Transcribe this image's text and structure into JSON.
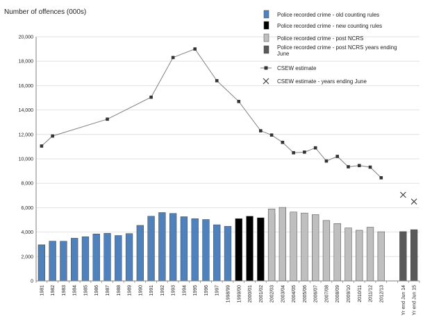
{
  "chart_data": {
    "type": "bar",
    "ylabel": "Number of offences (000s)",
    "ylim": [
      0,
      20000
    ],
    "yticks": [
      0,
      2000,
      4000,
      6000,
      8000,
      10000,
      12000,
      14000,
      16000,
      18000,
      20000
    ],
    "ytick_labels": [
      "0",
      "2,000",
      "4,000",
      "6,000",
      "8,000",
      "10,000",
      "12,000",
      "14,000",
      "16,000",
      "18,000",
      "20,000"
    ],
    "categories": [
      "1981",
      "1982",
      "1983",
      "1984",
      "1985",
      "1986",
      "1987",
      "1988",
      "1989",
      "1990",
      "1991",
      "1992",
      "1993",
      "1994",
      "1995",
      "1996",
      "1997",
      "1998/99",
      "1999/00",
      "2000/01",
      "2001/02",
      "2002/03",
      "2003/04",
      "2004/05",
      "2005/06",
      "2006/07",
      "2007/08",
      "2008/09",
      "2009/10",
      "2010/11",
      "2011/12",
      "2012/13",
      "",
      "Yr end Jun 14",
      "Yr end Jun 15"
    ],
    "legend_position": "top-right",
    "series": [
      {
        "name": "Police recorded crime - old counting rules",
        "kind": "bar",
        "color": "#4f81bd",
        "values": [
          2960,
          3260,
          3250,
          3500,
          3620,
          3850,
          3900,
          3720,
          3880,
          4550,
          5300,
          5600,
          5530,
          5260,
          5100,
          5030,
          4600,
          4480,
          null,
          null,
          null,
          null,
          null,
          null,
          null,
          null,
          null,
          null,
          null,
          null,
          null,
          null,
          null,
          null,
          null
        ]
      },
      {
        "name": "Police recorded crime - new counting rules",
        "kind": "bar",
        "color": "#000000",
        "values": [
          null,
          null,
          null,
          null,
          null,
          null,
          null,
          null,
          null,
          null,
          null,
          null,
          null,
          null,
          null,
          null,
          null,
          null,
          5100,
          5300,
          5170,
          5530,
          null,
          null,
          null,
          null,
          null,
          null,
          null,
          null,
          null,
          null,
          null,
          null,
          null
        ]
      },
      {
        "name": "Police recorded crime - post NCRS",
        "kind": "bar",
        "color": "#bfbfbf",
        "values": [
          null,
          null,
          null,
          null,
          null,
          null,
          null,
          null,
          null,
          null,
          null,
          null,
          null,
          null,
          null,
          null,
          null,
          null,
          null,
          null,
          null,
          5900,
          6020,
          5640,
          5560,
          5430,
          4950,
          4700,
          4340,
          4150,
          4400,
          4030,
          null,
          null,
          null
        ]
      },
      {
        "name": "Police recorded crime - post NCRS years ending June",
        "kind": "bar",
        "color": "#595959",
        "values": [
          null,
          null,
          null,
          null,
          null,
          null,
          null,
          null,
          null,
          null,
          null,
          null,
          null,
          null,
          null,
          null,
          null,
          null,
          null,
          null,
          null,
          null,
          null,
          null,
          null,
          null,
          null,
          null,
          null,
          null,
          null,
          null,
          null,
          4040,
          4200
        ]
      },
      {
        "name": "CSEW  estimate",
        "kind": "line",
        "color": "#333333",
        "values": [
          11050,
          11870,
          null,
          null,
          null,
          null,
          13250,
          null,
          null,
          null,
          15050,
          null,
          18300,
          null,
          19000,
          null,
          16400,
          null,
          14700,
          null,
          12300,
          11950,
          11350,
          10500,
          10550,
          10900,
          9820,
          10200,
          9350,
          9450,
          9320,
          8450,
          null,
          null,
          null
        ]
      },
      {
        "name": "CSEW  estimate - years ending June",
        "kind": "cross",
        "color": "#333333",
        "values": [
          null,
          null,
          null,
          null,
          null,
          null,
          null,
          null,
          null,
          null,
          null,
          null,
          null,
          null,
          null,
          null,
          null,
          null,
          null,
          null,
          null,
          null,
          null,
          null,
          null,
          null,
          null,
          null,
          null,
          null,
          null,
          null,
          null,
          7050,
          6500
        ]
      }
    ]
  }
}
